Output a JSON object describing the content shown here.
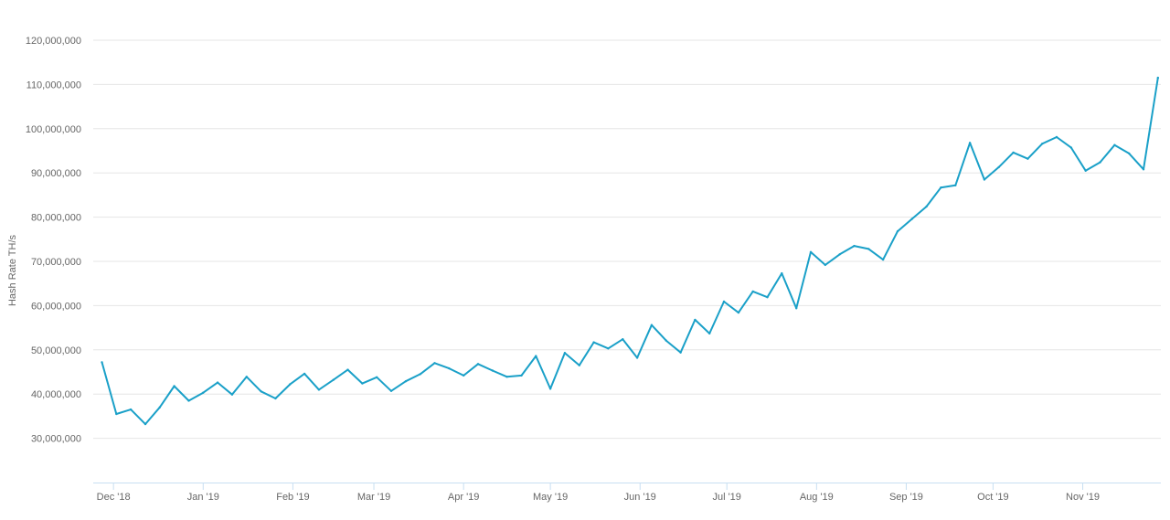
{
  "chart_data": {
    "type": "line",
    "title": "",
    "xlabel": "",
    "ylabel": "Hash Rate TH/s",
    "ylim": [
      20000000,
      120000000
    ],
    "grid": true,
    "legend": "none",
    "line_color": "#1aa0c8",
    "grid_color": "#e6e6e6",
    "axis_color": "#c8dff2",
    "y_ticks": [
      {
        "value": 30000000,
        "label": "30,000,000"
      },
      {
        "value": 40000000,
        "label": "40,000,000"
      },
      {
        "value": 50000000,
        "label": "50,000,000"
      },
      {
        "value": 60000000,
        "label": "60,000,000"
      },
      {
        "value": 70000000,
        "label": "70,000,000"
      },
      {
        "value": 80000000,
        "label": "80,000,000"
      },
      {
        "value": 90000000,
        "label": "90,000,000"
      },
      {
        "value": 100000000,
        "label": "100,000,000"
      },
      {
        "value": 110000000,
        "label": "110,000,000"
      },
      {
        "value": 120000000,
        "label": "120,000,000"
      }
    ],
    "x_ticks": [
      {
        "date": "2018-12-01",
        "label": "Dec '18"
      },
      {
        "date": "2019-01-01",
        "label": "Jan '19"
      },
      {
        "date": "2019-02-01",
        "label": "Feb '19"
      },
      {
        "date": "2019-03-01",
        "label": "Mar '19"
      },
      {
        "date": "2019-04-01",
        "label": "Apr '19"
      },
      {
        "date": "2019-05-01",
        "label": "May '19"
      },
      {
        "date": "2019-06-01",
        "label": "Jun '19"
      },
      {
        "date": "2019-07-01",
        "label": "Jul '19"
      },
      {
        "date": "2019-08-01",
        "label": "Aug '19"
      },
      {
        "date": "2019-09-01",
        "label": "Sep '19"
      },
      {
        "date": "2019-10-01",
        "label": "Oct '19"
      },
      {
        "date": "2019-11-01",
        "label": "Nov '19"
      }
    ],
    "xlim": [
      "2018-11-24",
      "2019-11-28"
    ],
    "series": [
      {
        "x": [
          "2018-11-27",
          "2018-12-02",
          "2018-12-07",
          "2018-12-12",
          "2018-12-17",
          "2018-12-22",
          "2018-12-27",
          "2019-01-01",
          "2019-01-06",
          "2019-01-11",
          "2019-01-16",
          "2019-01-21",
          "2019-01-26",
          "2019-01-31",
          "2019-02-05",
          "2019-02-10",
          "2019-02-15",
          "2019-02-20",
          "2019-02-25",
          "2019-03-02",
          "2019-03-07",
          "2019-03-12",
          "2019-03-17",
          "2019-03-22",
          "2019-03-27",
          "2019-04-01",
          "2019-04-06",
          "2019-04-11",
          "2019-04-16",
          "2019-04-21",
          "2019-04-26",
          "2019-05-01",
          "2019-05-06",
          "2019-05-11",
          "2019-05-16",
          "2019-05-21",
          "2019-05-26",
          "2019-05-31",
          "2019-06-05",
          "2019-06-10",
          "2019-06-15",
          "2019-06-20",
          "2019-06-25",
          "2019-06-30",
          "2019-07-05",
          "2019-07-10",
          "2019-07-15",
          "2019-07-20",
          "2019-07-25",
          "2019-07-30",
          "2019-08-04",
          "2019-08-09",
          "2019-08-14",
          "2019-08-19",
          "2019-08-24",
          "2019-08-29",
          "2019-09-03",
          "2019-09-08",
          "2019-09-13",
          "2019-09-18",
          "2019-09-23",
          "2019-09-28",
          "2019-10-03",
          "2019-10-08",
          "2019-10-13",
          "2019-10-18",
          "2019-10-23",
          "2019-10-28",
          "2019-11-02",
          "2019-11-07",
          "2019-11-12",
          "2019-11-17",
          "2019-11-22",
          "2019-11-27"
        ],
        "y": [
          47200000,
          35500000,
          36500000,
          33200000,
          37000000,
          41800000,
          38500000,
          40300000,
          42600000,
          39900000,
          43900000,
          40600000,
          39000000,
          42200000,
          44600000,
          41000000,
          43200000,
          45500000,
          42400000,
          43800000,
          40700000,
          42900000,
          44500000,
          47000000,
          45800000,
          44200000,
          46800000,
          45300000,
          43900000,
          44200000,
          48600000,
          41200000,
          49300000,
          46500000,
          51700000,
          50300000,
          52400000,
          48200000,
          55600000,
          52100000,
          49400000,
          56800000,
          53700000,
          60900000,
          58400000,
          63200000,
          61900000,
          67300000,
          59400000,
          72100000,
          69200000,
          71600000,
          73500000,
          72800000,
          70400000,
          76800000,
          79600000,
          82400000,
          86700000,
          87200000,
          96800000,
          88500000,
          91300000,
          94600000,
          93200000,
          96600000,
          98100000,
          95700000,
          90500000,
          92400000,
          96300000,
          94400000,
          90800000,
          111500000
        ]
      }
    ]
  }
}
